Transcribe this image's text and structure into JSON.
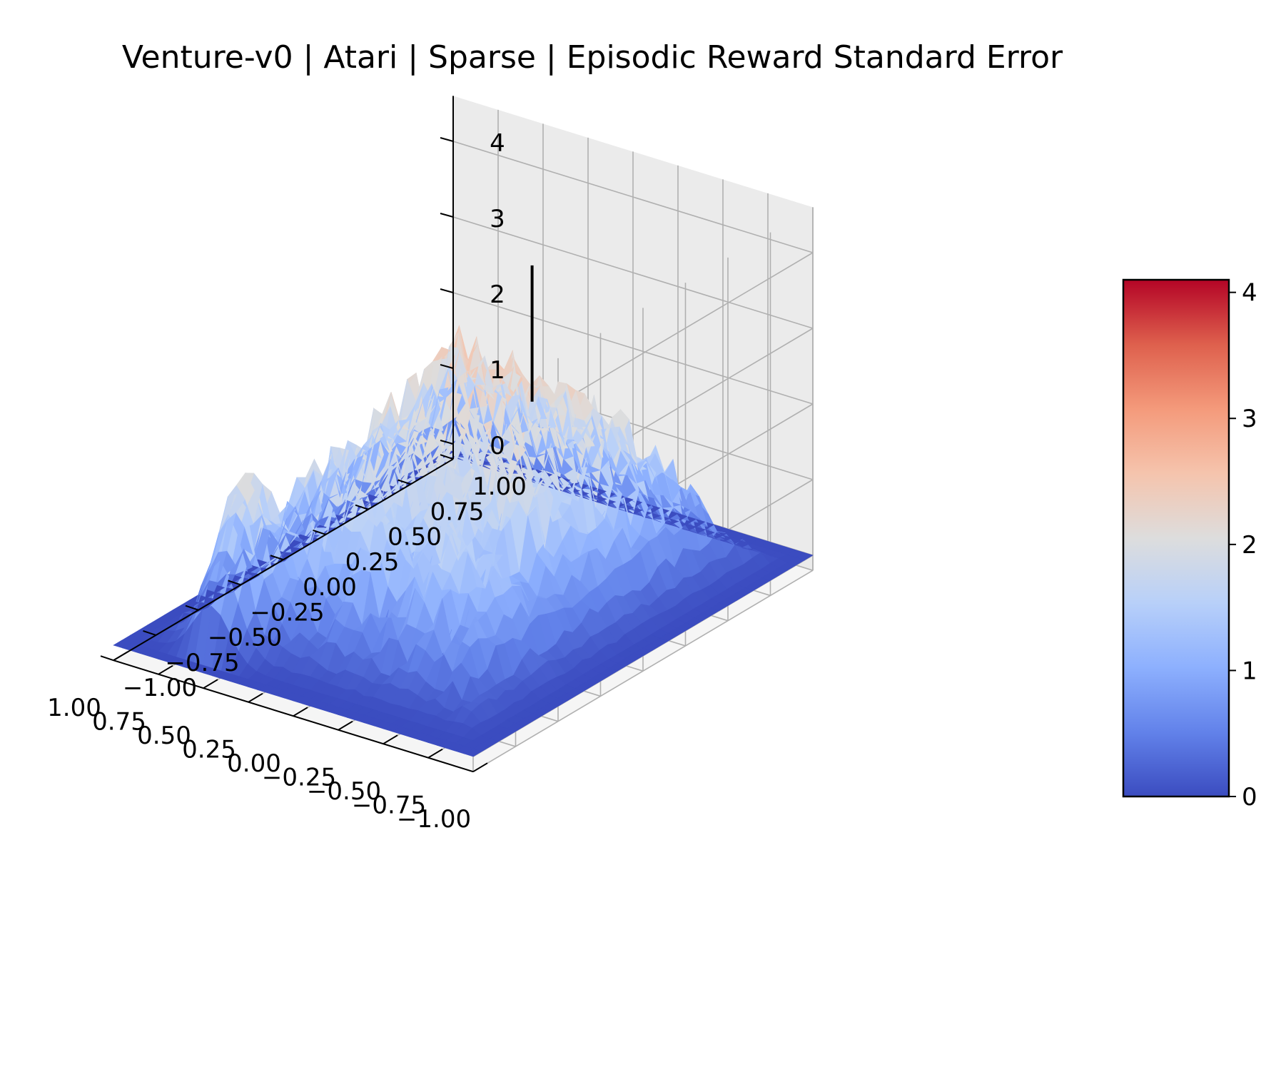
{
  "chart_data": {
    "type": "surface3d",
    "title": "Venture-v0 | Atari | Sparse | Episodic Reward Standard Error",
    "xlabel": "",
    "ylabel": "",
    "zlabel": "",
    "colormap": "coolwarm",
    "x_ticks": [
      "−1.00",
      "−0.75",
      "−0.50",
      "−0.25",
      "0.00",
      "0.25",
      "0.50",
      "0.75",
      "1.00"
    ],
    "y_ticks": [
      "−1.00",
      "−0.75",
      "−0.50",
      "−0.25",
      "0.00",
      "0.25",
      "0.50",
      "0.75",
      "1.00"
    ],
    "z_ticks": [
      "0",
      "1",
      "2",
      "3",
      "4"
    ],
    "colorbar_ticks": [
      "0",
      "1",
      "2",
      "3",
      "4"
    ],
    "xlim": [
      -1,
      1
    ],
    "ylim": [
      -1,
      1
    ],
    "zlim": [
      -0.2,
      4.6
    ],
    "colorbar_range": [
      0,
      4.1
    ],
    "max_value": 4.1,
    "marker_line": {
      "x": -0.1,
      "y": 0.3,
      "z_from": 2.3,
      "z_to": 4.1
    },
    "grid": true,
    "surface_shape": "noisy dome: near 0 at the edges, rising to about 3.5-4.1 toward the back right"
  }
}
